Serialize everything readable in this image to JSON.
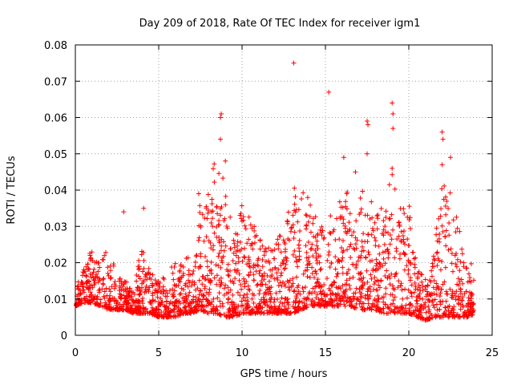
{
  "chart_data": {
    "type": "scatter",
    "title": "Day 209 of 2018, Rate Of TEC Index for receiver igm1",
    "xlabel": "GPS time / hours",
    "ylabel": "ROTI / TECUs",
    "xlim": [
      0,
      25
    ],
    "ylim": [
      0,
      0.08
    ],
    "xticks": [
      0,
      5,
      10,
      15,
      20,
      25
    ],
    "yticks": [
      0,
      0.01,
      0.02,
      0.03,
      0.04,
      0.05,
      0.06,
      0.07,
      0.08
    ],
    "xtick_labels": [
      "0",
      "5",
      "10",
      "15",
      "20",
      "25"
    ],
    "ytick_labels": [
      "0",
      "0.01",
      "0.02",
      "0.03",
      "0.04",
      "0.05",
      "0.06",
      "0.07",
      "0.08"
    ],
    "grid": true,
    "marker": "+",
    "series_color": "#ff0000",
    "envelope": {
      "x": [
        0.0,
        0.5,
        1.0,
        1.5,
        2.0,
        2.5,
        3.0,
        3.5,
        4.0,
        4.5,
        5.0,
        5.5,
        6.0,
        6.5,
        7.0,
        7.5,
        8.0,
        8.5,
        9.0,
        9.5,
        10.0,
        10.5,
        11.0,
        11.5,
        12.0,
        12.5,
        13.0,
        13.5,
        14.0,
        14.5,
        15.0,
        15.5,
        16.0,
        16.5,
        17.0,
        17.5,
        18.0,
        18.5,
        19.0,
        19.5,
        20.0,
        20.5,
        21.0,
        21.5,
        22.0,
        22.5,
        23.0,
        23.5,
        24.0
      ],
      "upper": [
        0.013,
        0.018,
        0.025,
        0.022,
        0.025,
        0.016,
        0.015,
        0.014,
        0.026,
        0.017,
        0.016,
        0.018,
        0.02,
        0.022,
        0.021,
        0.038,
        0.043,
        0.05,
        0.045,
        0.03,
        0.037,
        0.036,
        0.028,
        0.025,
        0.03,
        0.027,
        0.04,
        0.042,
        0.038,
        0.032,
        0.03,
        0.035,
        0.038,
        0.042,
        0.038,
        0.045,
        0.035,
        0.035,
        0.045,
        0.035,
        0.038,
        0.018,
        0.016,
        0.022,
        0.045,
        0.04,
        0.032,
        0.02,
        0.02
      ],
      "lower": [
        0.008,
        0.009,
        0.009,
        0.008,
        0.007,
        0.007,
        0.007,
        0.006,
        0.006,
        0.006,
        0.005,
        0.005,
        0.005,
        0.006,
        0.006,
        0.007,
        0.006,
        0.006,
        0.005,
        0.005,
        0.006,
        0.006,
        0.006,
        0.006,
        0.006,
        0.006,
        0.006,
        0.007,
        0.008,
        0.008,
        0.008,
        0.008,
        0.008,
        0.008,
        0.007,
        0.007,
        0.007,
        0.006,
        0.006,
        0.006,
        0.006,
        0.005,
        0.004,
        0.005,
        0.005,
        0.005,
        0.005,
        0.005,
        0.006
      ]
    },
    "outliers": [
      {
        "x": 2.9,
        "y": 0.034
      },
      {
        "x": 4.1,
        "y": 0.035
      },
      {
        "x": 7.4,
        "y": 0.039
      },
      {
        "x": 8.7,
        "y": 0.06
      },
      {
        "x": 8.75,
        "y": 0.061
      },
      {
        "x": 8.7,
        "y": 0.054
      },
      {
        "x": 9.0,
        "y": 0.048
      },
      {
        "x": 13.1,
        "y": 0.075
      },
      {
        "x": 15.2,
        "y": 0.067
      },
      {
        "x": 16.1,
        "y": 0.049
      },
      {
        "x": 16.8,
        "y": 0.045
      },
      {
        "x": 17.5,
        "y": 0.059
      },
      {
        "x": 17.55,
        "y": 0.058
      },
      {
        "x": 17.5,
        "y": 0.05
      },
      {
        "x": 19.0,
        "y": 0.064
      },
      {
        "x": 19.05,
        "y": 0.061
      },
      {
        "x": 19.05,
        "y": 0.057
      },
      {
        "x": 19.0,
        "y": 0.046
      },
      {
        "x": 22.0,
        "y": 0.056
      },
      {
        "x": 22.05,
        "y": 0.054
      },
      {
        "x": 22.0,
        "y": 0.047
      },
      {
        "x": 22.5,
        "y": 0.049
      }
    ]
  }
}
